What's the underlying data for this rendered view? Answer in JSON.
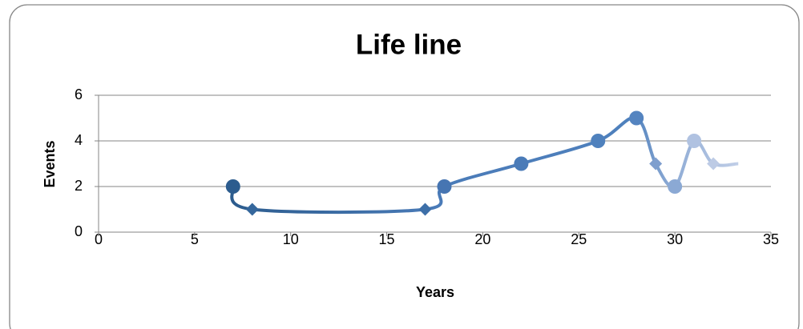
{
  "chart_data": {
    "type": "scatter-smooth",
    "title": "Life line",
    "x_label": "Years",
    "y_label": "Events",
    "x": [
      7,
      8,
      17,
      18,
      22,
      26,
      28,
      29,
      30,
      31,
      32,
      33.3
    ],
    "values": [
      2,
      1,
      1,
      2,
      3,
      4,
      5,
      3,
      2,
      4,
      3,
      3
    ],
    "markers": [
      "circle",
      "diamond",
      "diamond",
      "circle",
      "circle",
      "circle",
      "circle",
      "diamond",
      "circle",
      "circle",
      "diamond",
      "none"
    ],
    "colors": [
      "#2c5c8e",
      "#35679c",
      "#3d6fa8",
      "#4675b2",
      "#4a7bb8",
      "#4f81bd",
      "#5484c0",
      "#7f9fce",
      "#8ba9d4",
      "#b0c2e1",
      "#bdcbe5",
      "#c6d2e9"
    ],
    "xlim": [
      0,
      35
    ],
    "xticks": [
      0,
      5,
      10,
      15,
      20,
      25,
      30,
      35
    ],
    "ylim": [
      0,
      6
    ],
    "yticks": [
      0,
      2,
      4,
      6
    ],
    "grid": true
  }
}
